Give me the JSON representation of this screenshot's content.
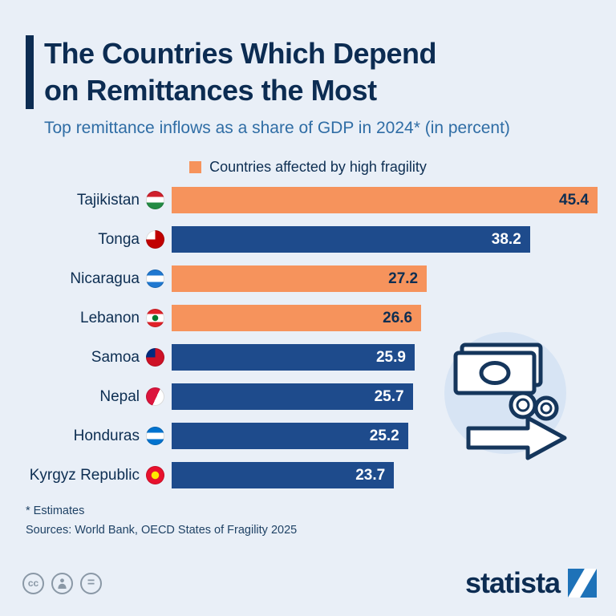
{
  "header": {
    "title_line1": "The Countries Which Depend",
    "title_line2": "on Remittances the Most",
    "subtitle": "Top remittance inflows as a share of GDP in 2024* (in percent)"
  },
  "legend": {
    "label": "Countries affected by high fragility",
    "color": "#f6935c"
  },
  "chart_data": {
    "type": "bar",
    "orientation": "horizontal",
    "title": "The Countries Which Depend on Remittances the Most",
    "subtitle": "Top remittance inflows as a share of GDP in 2024* (in percent)",
    "unit": "percent of GDP",
    "categories": [
      "Tajikistan",
      "Tonga",
      "Nicaragua",
      "Lebanon",
      "Samoa",
      "Nepal",
      "Honduras",
      "Kyrgyz Republic"
    ],
    "values": [
      45.4,
      38.2,
      27.2,
      26.6,
      25.9,
      25.7,
      25.2,
      23.7
    ],
    "high_fragility": [
      true,
      false,
      true,
      true,
      false,
      false,
      false,
      false
    ],
    "flags": [
      "tajikistan",
      "tonga",
      "nicaragua",
      "lebanon",
      "samoa",
      "nepal",
      "honduras",
      "kyrgyz-republic"
    ],
    "xlim": [
      0,
      45.4
    ],
    "grid": false,
    "legend_position": "top",
    "bar_colors": {
      "fragile": "#f6935c",
      "default": "#1e4b8c"
    }
  },
  "footer": {
    "note": "* Estimates",
    "sources": "Sources: World Bank, OECD States of Fragility 2025"
  },
  "branding": {
    "logo_text": "statista",
    "logo_color": "#0c2c52",
    "logo_square_color": "#1e72b8"
  }
}
